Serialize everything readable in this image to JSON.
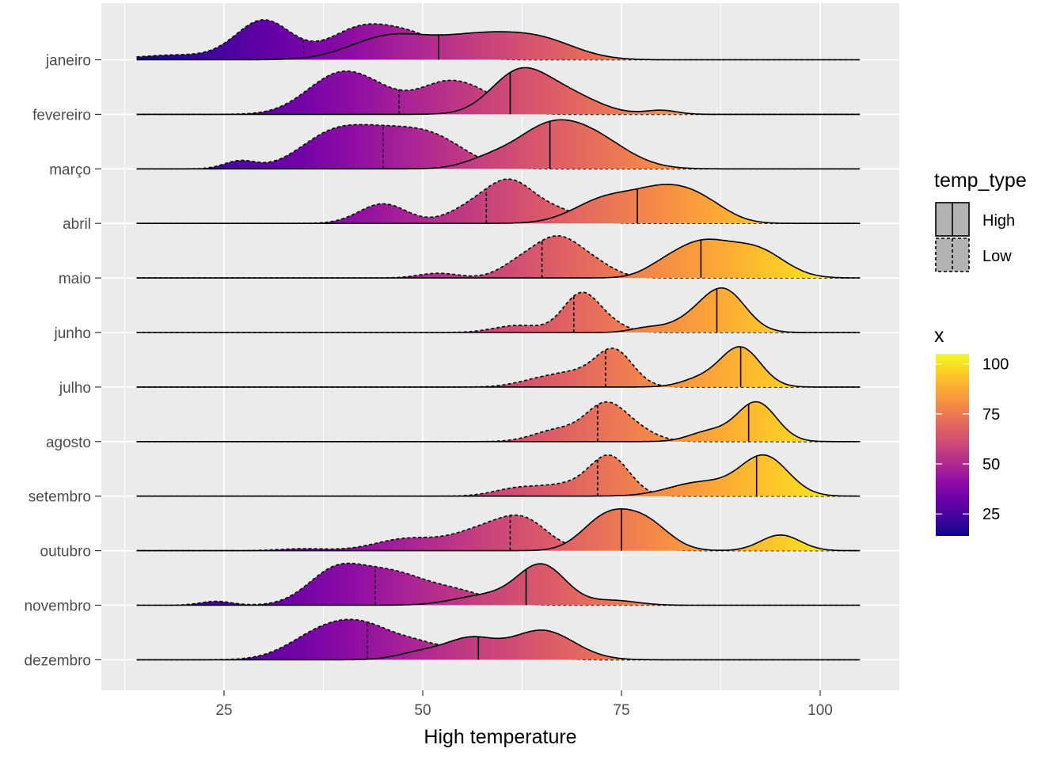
{
  "chart_data": {
    "type": "ridgeline",
    "xlabel": "High temperature",
    "ylabel": "",
    "xlim": [
      11,
      108
    ],
    "x_ticks": [
      25,
      50,
      75,
      100
    ],
    "x_tick_labels": [
      "25",
      "50",
      "75",
      "100"
    ],
    "grid": true,
    "background": "#ebebeb",
    "fill_scale": {
      "title": "x",
      "palette": "plasma",
      "range": [
        14,
        105
      ],
      "breaks": [
        25,
        50,
        75,
        100
      ],
      "break_labels": [
        "25",
        "50",
        "75",
        "100"
      ]
    },
    "linetype_legend": {
      "title": "temp_type",
      "entries": [
        {
          "label": "High",
          "linetype": "solid"
        },
        {
          "label": "Low",
          "linetype": "dashed"
        }
      ]
    },
    "legend_position": "right",
    "months": [
      {
        "name": "janeiro",
        "high": {
          "quantile": 52,
          "components": [
            [
              46,
              5,
              0.6
            ],
            [
              57,
              5,
              0.55
            ],
            [
              65,
              4.5,
              0.45
            ]
          ]
        },
        "low": {
          "quantile": 35,
          "components": [
            [
              30,
              3.5,
              1.0
            ],
            [
              19,
              5,
              0.12
            ],
            [
              42,
              4,
              0.75
            ],
            [
              49,
              4,
              0.55
            ]
          ]
        }
      },
      {
        "name": "fevereiro",
        "high": {
          "quantile": 61,
          "components": [
            [
              62,
              3.5,
              1.0
            ],
            [
              68,
              4,
              0.5
            ],
            [
              80,
              2,
              0.1
            ]
          ]
        },
        "low": {
          "quantile": 47,
          "components": [
            [
              39,
              4,
              0.85
            ],
            [
              44,
              4,
              0.45
            ],
            [
              53,
              3.5,
              0.75
            ],
            [
              58,
              3,
              0.3
            ]
          ]
        }
      },
      {
        "name": "março",
        "high": {
          "quantile": 66,
          "components": [
            [
              65,
              4,
              0.8
            ],
            [
              71,
              4.5,
              0.8
            ],
            [
              58,
              3,
              0.2
            ]
          ]
        },
        "low": {
          "quantile": 45,
          "components": [
            [
              27,
              2,
              0.2
            ],
            [
              38,
              4,
              0.65
            ],
            [
              45,
              5,
              0.85
            ],
            [
              52,
              4,
              0.55
            ]
          ]
        }
      },
      {
        "name": "abril",
        "high": {
          "quantile": 77,
          "components": [
            [
              73,
              4,
              0.6
            ],
            [
              81,
              4,
              0.85
            ],
            [
              86,
              3,
              0.25
            ]
          ]
        },
        "low": {
          "quantile": 58,
          "components": [
            [
              45,
              3,
              0.5
            ],
            [
              56,
              3,
              0.35
            ],
            [
              61,
              3,
              1.0
            ],
            [
              67,
              3,
              0.3
            ]
          ]
        }
      },
      {
        "name": "maio",
        "high": {
          "quantile": 85,
          "components": [
            [
              85,
              3.5,
              0.85
            ],
            [
              92,
              3.5,
              0.7
            ],
            [
              80,
              2.5,
              0.18
            ]
          ]
        },
        "low": {
          "quantile": 65,
          "components": [
            [
              52,
              2.5,
              0.12
            ],
            [
              62,
              2.5,
              0.3
            ],
            [
              67,
              3,
              1.0
            ],
            [
              72,
              2.5,
              0.25
            ]
          ]
        }
      },
      {
        "name": "junho",
        "high": {
          "quantile": 87,
          "components": [
            [
              88,
              2.7,
              1.0
            ],
            [
              84,
              3,
              0.3
            ],
            [
              78,
              2,
              0.1
            ]
          ]
        },
        "low": {
          "quantile": 69,
          "components": [
            [
              62,
              3,
              0.18
            ],
            [
              70,
              2.3,
              1.0
            ],
            [
              74,
              2,
              0.15
            ]
          ]
        }
      },
      {
        "name": "julho",
        "high": {
          "quantile": 90,
          "components": [
            [
              90,
              2.5,
              1.0
            ],
            [
              85,
              2.5,
              0.2
            ]
          ]
        },
        "low": {
          "quantile": 73,
          "components": [
            [
              65,
              3,
              0.2
            ],
            [
              69,
              2.5,
              0.25
            ],
            [
              74,
              2.4,
              0.95
            ]
          ]
        }
      },
      {
        "name": "agosto",
        "high": {
          "quantile": 91,
          "components": [
            [
              92,
              2.5,
              1.0
            ],
            [
              86,
              2.5,
              0.25
            ]
          ]
        },
        "low": {
          "quantile": 72,
          "components": [
            [
              67,
              3,
              0.3
            ],
            [
              73,
              2.5,
              0.9
            ],
            [
              77,
              2.5,
              0.25
            ]
          ]
        }
      },
      {
        "name": "setembro",
        "high": {
          "quantile": 92,
          "components": [
            [
              93,
              3,
              1.0
            ],
            [
              85,
              4,
              0.35
            ]
          ]
        },
        "low": {
          "quantile": 72,
          "components": [
            [
              62,
              3,
              0.2
            ],
            [
              68,
              3,
              0.25
            ],
            [
              73.5,
              2.5,
              1.0
            ]
          ]
        }
      },
      {
        "name": "outubro",
        "high": {
          "quantile": 75,
          "components": [
            [
              73,
              3,
              0.8
            ],
            [
              78,
              3,
              0.7
            ],
            [
              95,
              2.5,
              0.4
            ]
          ]
        },
        "low": {
          "quantile": 61,
          "components": [
            [
              35,
              3,
              0.05
            ],
            [
              48,
              4,
              0.3
            ],
            [
              58,
              4,
              0.55
            ],
            [
              63,
              3,
              0.6
            ],
            [
              75,
              3,
              0.25
            ]
          ]
        }
      },
      {
        "name": "novembro",
        "high": {
          "quantile": 63,
          "components": [
            [
              65,
              3,
              1.0
            ],
            [
              58,
              4,
              0.25
            ],
            [
              74,
              3,
              0.12
            ]
          ]
        },
        "low": {
          "quantile": 44,
          "components": [
            [
              24,
              2,
              0.1
            ],
            [
              39,
              3.5,
              0.85
            ],
            [
              46,
              4,
              0.75
            ],
            [
              54,
              4,
              0.35
            ]
          ]
        }
      },
      {
        "name": "dezembro",
        "high": {
          "quantile": 57,
          "components": [
            [
              56,
              3,
              0.5
            ],
            [
              65,
              4,
              0.75
            ],
            [
              50,
              3,
              0.2
            ]
          ]
        },
        "low": {
          "quantile": 43,
          "components": [
            [
              37,
              4,
              0.6
            ],
            [
              43,
              4,
              0.75
            ],
            [
              50,
              3,
              0.3
            ],
            [
              57,
              3,
              0.35
            ],
            [
              62,
              3,
              0.2
            ]
          ]
        }
      }
    ]
  }
}
